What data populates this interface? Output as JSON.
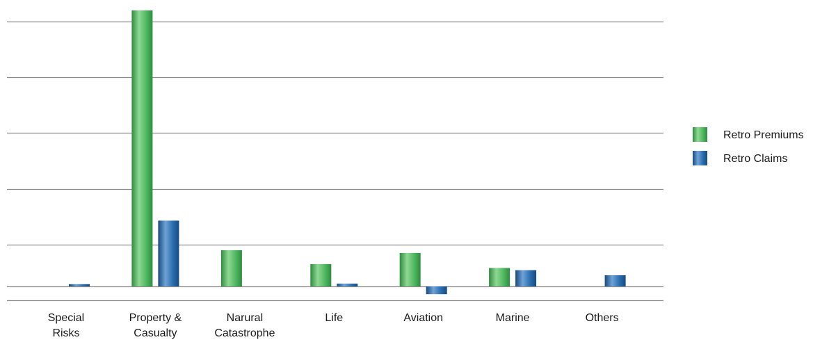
{
  "chart_data": {
    "type": "bar",
    "categories": [
      [
        "Special",
        "Risks"
      ],
      [
        "Property &",
        "Casualty"
      ],
      [
        "Narural",
        "Catastrophe"
      ],
      [
        "Life"
      ],
      [
        "Aviation"
      ],
      [
        "Marine"
      ],
      [
        "Others"
      ]
    ],
    "series": [
      {
        "name": "Retro Premiums",
        "color": "#4fb860",
        "values": [
          0,
          4.95,
          0.65,
          0.4,
          0.6,
          0.33,
          0
        ]
      },
      {
        "name": "Retro Claims",
        "color": "#2a6fb0",
        "values": [
          0.04,
          1.18,
          0,
          0.05,
          -0.14,
          0.29,
          0.2
        ]
      }
    ],
    "title": "",
    "xlabel": "",
    "ylabel": "",
    "ylim": [
      -0.25,
      5.0
    ],
    "gridlines": [
      -0.25,
      0.0,
      0.75,
      1.75,
      2.75,
      3.75,
      4.75
    ],
    "grid": true,
    "y_tick_labels_shown": false,
    "legend_position": "right"
  }
}
